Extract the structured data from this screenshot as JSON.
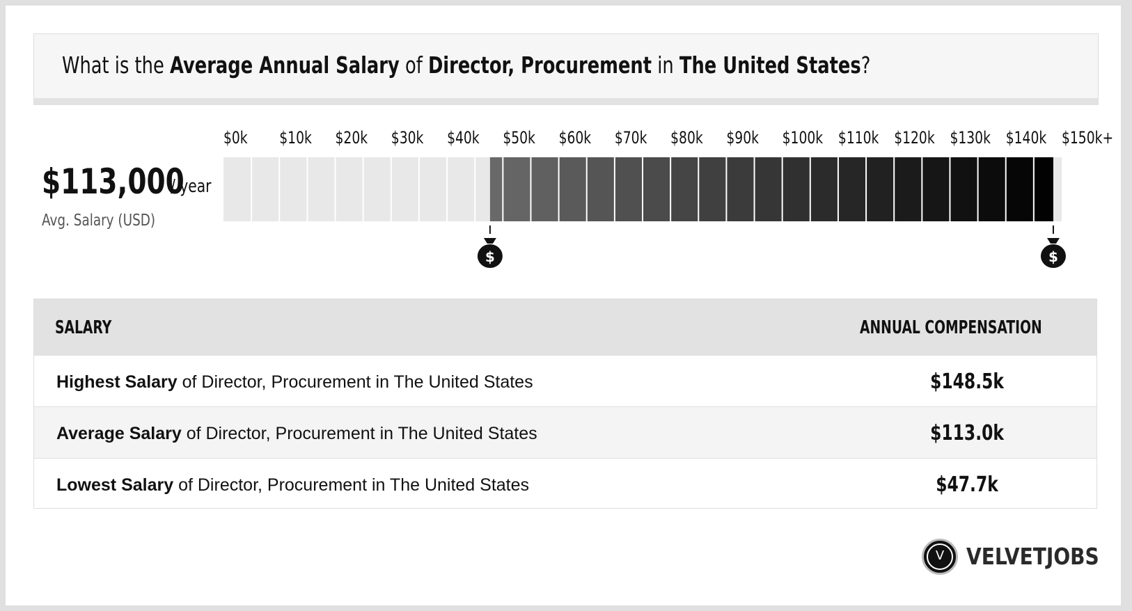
{
  "header": {
    "prefix": "What is the ",
    "metric": "Average Annual Salary",
    "of": " of ",
    "job": "Director, Procurement",
    "in": " in ",
    "location": "The United States",
    "suffix": "?"
  },
  "average": {
    "amount": "$113,000",
    "per": "/ year",
    "label": "Avg. Salary (USD)"
  },
  "chart_data": {
    "type": "bar",
    "title": "",
    "xlabel": "",
    "ylabel": "",
    "tick_labels": [
      "$0k",
      "$10k",
      "$20k",
      "$30k",
      "$40k",
      "$50k",
      "$60k",
      "$70k",
      "$80k",
      "$90k",
      "$100k",
      "$110k",
      "$120k",
      "$130k",
      "$140k",
      "$150k+"
    ],
    "xlim": [
      0,
      150
    ],
    "range_low": 47.7,
    "range_high": 148.5,
    "average": 113.0,
    "units": "thousand USD",
    "markers": [
      {
        "value": 47.7,
        "icon": "money-bag-icon"
      },
      {
        "value": 148.5,
        "icon": "money-bag-icon"
      }
    ],
    "colors": {
      "empty": "#e8e8e8",
      "low": "#6a6a6a",
      "high": "#000000"
    }
  },
  "table": {
    "header_salary": "SALARY",
    "header_comp": "ANNUAL COMPENSATION",
    "rows": [
      {
        "bold": "Highest Salary",
        "rest": " of Director, Procurement in The United States",
        "value": "$148.5k"
      },
      {
        "bold": "Average Salary",
        "rest": " of Director, Procurement in The United States",
        "value": "$113.0k"
      },
      {
        "bold": "Lowest Salary",
        "rest": " of Director, Procurement in The United States",
        "value": "$47.7k"
      }
    ]
  },
  "logo": {
    "text": "VELVETJOBS",
    "mark": "V"
  }
}
